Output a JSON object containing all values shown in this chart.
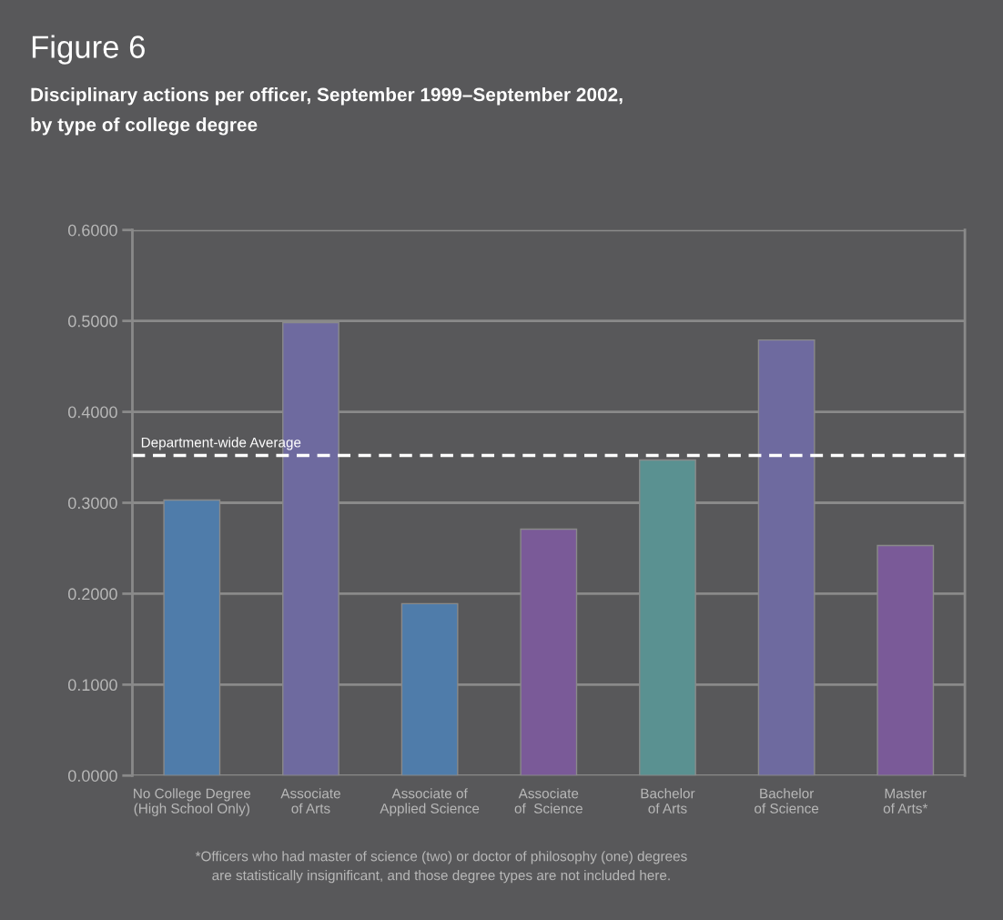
{
  "chart_data": {
    "type": "bar",
    "title": "Figure 6",
    "subtitle": "Disciplinary actions per officer, September 1999–September 2002,\nby type of college degree",
    "categories": [
      "No College Degree\n(High School Only)",
      "Associate\nof Arts",
      "Associate of\nApplied Science",
      "Associate\nof  Science",
      "Bachelor\nof Arts",
      "Bachelor\nof Science",
      "Master\nof Arts*"
    ],
    "values": [
      0.303,
      0.498,
      0.189,
      0.271,
      0.347,
      0.479,
      0.253
    ],
    "colors": [
      "#4f7caa",
      "#6e6a9f",
      "#4f7caa",
      "#7a5a98",
      "#5a9191",
      "#6e6a9f",
      "#7a5a98"
    ],
    "ylim": [
      0,
      0.6
    ],
    "yticks": [
      {
        "value": 0,
        "label": "0.0000"
      },
      {
        "value": 0.1,
        "label": "0.1000"
      },
      {
        "value": 0.2,
        "label": "0.2000"
      },
      {
        "value": 0.3,
        "label": "0.3000"
      },
      {
        "value": 0.4,
        "label": "0.4000"
      },
      {
        "value": 0.5,
        "label": "0.5000"
      },
      {
        "value": 0.6,
        "label": "0.6000"
      }
    ],
    "grid": "y",
    "ref_lines": [
      {
        "axis": "y",
        "value": 0.352,
        "label": "Department-wide Average",
        "color": "#ffffff",
        "line_style": "dashed"
      }
    ],
    "annotations": [
      "*Officers who had master of science (two) or doctor of philosophy (one) degrees\nare statistically insignificant, and those degree types are not included here."
    ]
  }
}
